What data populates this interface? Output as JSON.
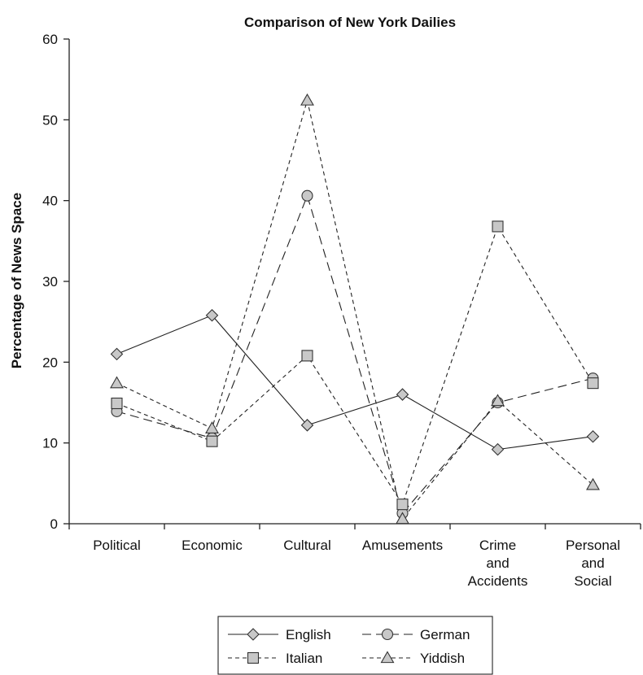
{
  "chart_data": {
    "type": "line",
    "title": "Comparison of New York Dailies",
    "xlabel": "",
    "ylabel": "Percentage of News Space",
    "ylim": [
      0,
      60
    ],
    "yticks": [
      0,
      10,
      20,
      30,
      40,
      50,
      60
    ],
    "categories": [
      [
        "Political"
      ],
      [
        "Economic"
      ],
      [
        "Cultural"
      ],
      [
        "Amusements"
      ],
      [
        "Crime",
        "and",
        "Accidents"
      ],
      [
        "Personal",
        "and",
        "Social"
      ]
    ],
    "series": [
      {
        "name": "English",
        "marker": "diamond",
        "dash": "solid",
        "values": [
          21.0,
          25.8,
          12.2,
          16.0,
          9.2,
          10.8
        ]
      },
      {
        "name": "German",
        "marker": "circle",
        "dash": "long-dash",
        "values": [
          13.9,
          10.6,
          40.6,
          1.3,
          15.0,
          18.0
        ]
      },
      {
        "name": "Italian",
        "marker": "square",
        "dash": "short-dash",
        "values": [
          14.9,
          10.2,
          20.8,
          2.4,
          36.8,
          17.4
        ]
      },
      {
        "name": "Yiddish",
        "marker": "triangle",
        "dash": "short-dash",
        "values": [
          17.4,
          11.8,
          52.4,
          0.6,
          15.2,
          4.8
        ]
      }
    ],
    "legend": {
      "position": "bottom-center",
      "columns": 2
    },
    "grid": false,
    "colors": {
      "line": "#222222",
      "marker_fill": "#c8c8c8",
      "marker_stroke": "#333333"
    }
  }
}
